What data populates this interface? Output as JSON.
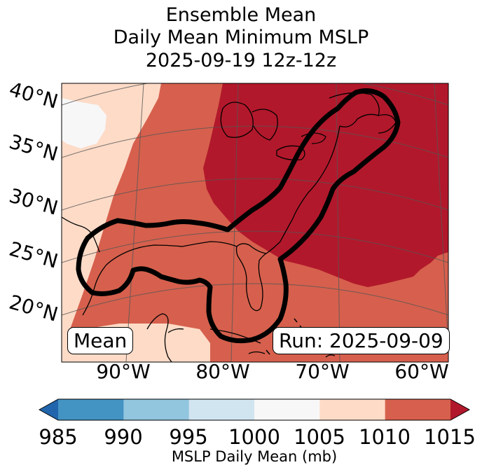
{
  "title": {
    "line1": "Ensemble Mean",
    "line2": "Daily Mean Minimum MSLP",
    "line3": "2025-09-19 12z-12z"
  },
  "map": {
    "lat_labels": [
      "40°N",
      "35°N",
      "30°N",
      "25°N",
      "20°N"
    ],
    "lon_labels": [
      "90°W",
      "80°W",
      "70°W",
      "60°W"
    ],
    "mean_box": "Mean",
    "run_box": "Run: 2025-09-09",
    "colors": {
      "c1000_1005": "#f7f7f7",
      "c1005_1010": "#fddbc7",
      "c1010_1015": "#d6604d",
      "c1015_plus": "#b2182b",
      "contour": "#000000"
    }
  },
  "colorbar": {
    "ticks": [
      "985",
      "990",
      "995",
      "1000",
      "1005",
      "1010",
      "1015"
    ],
    "label": "MSLP Daily Mean (mb)",
    "colors": [
      "#2166ac",
      "#4393c3",
      "#92c5de",
      "#d1e5f0",
      "#f7f7f7",
      "#fddbc7",
      "#d6604d",
      "#b2182b"
    ]
  }
}
